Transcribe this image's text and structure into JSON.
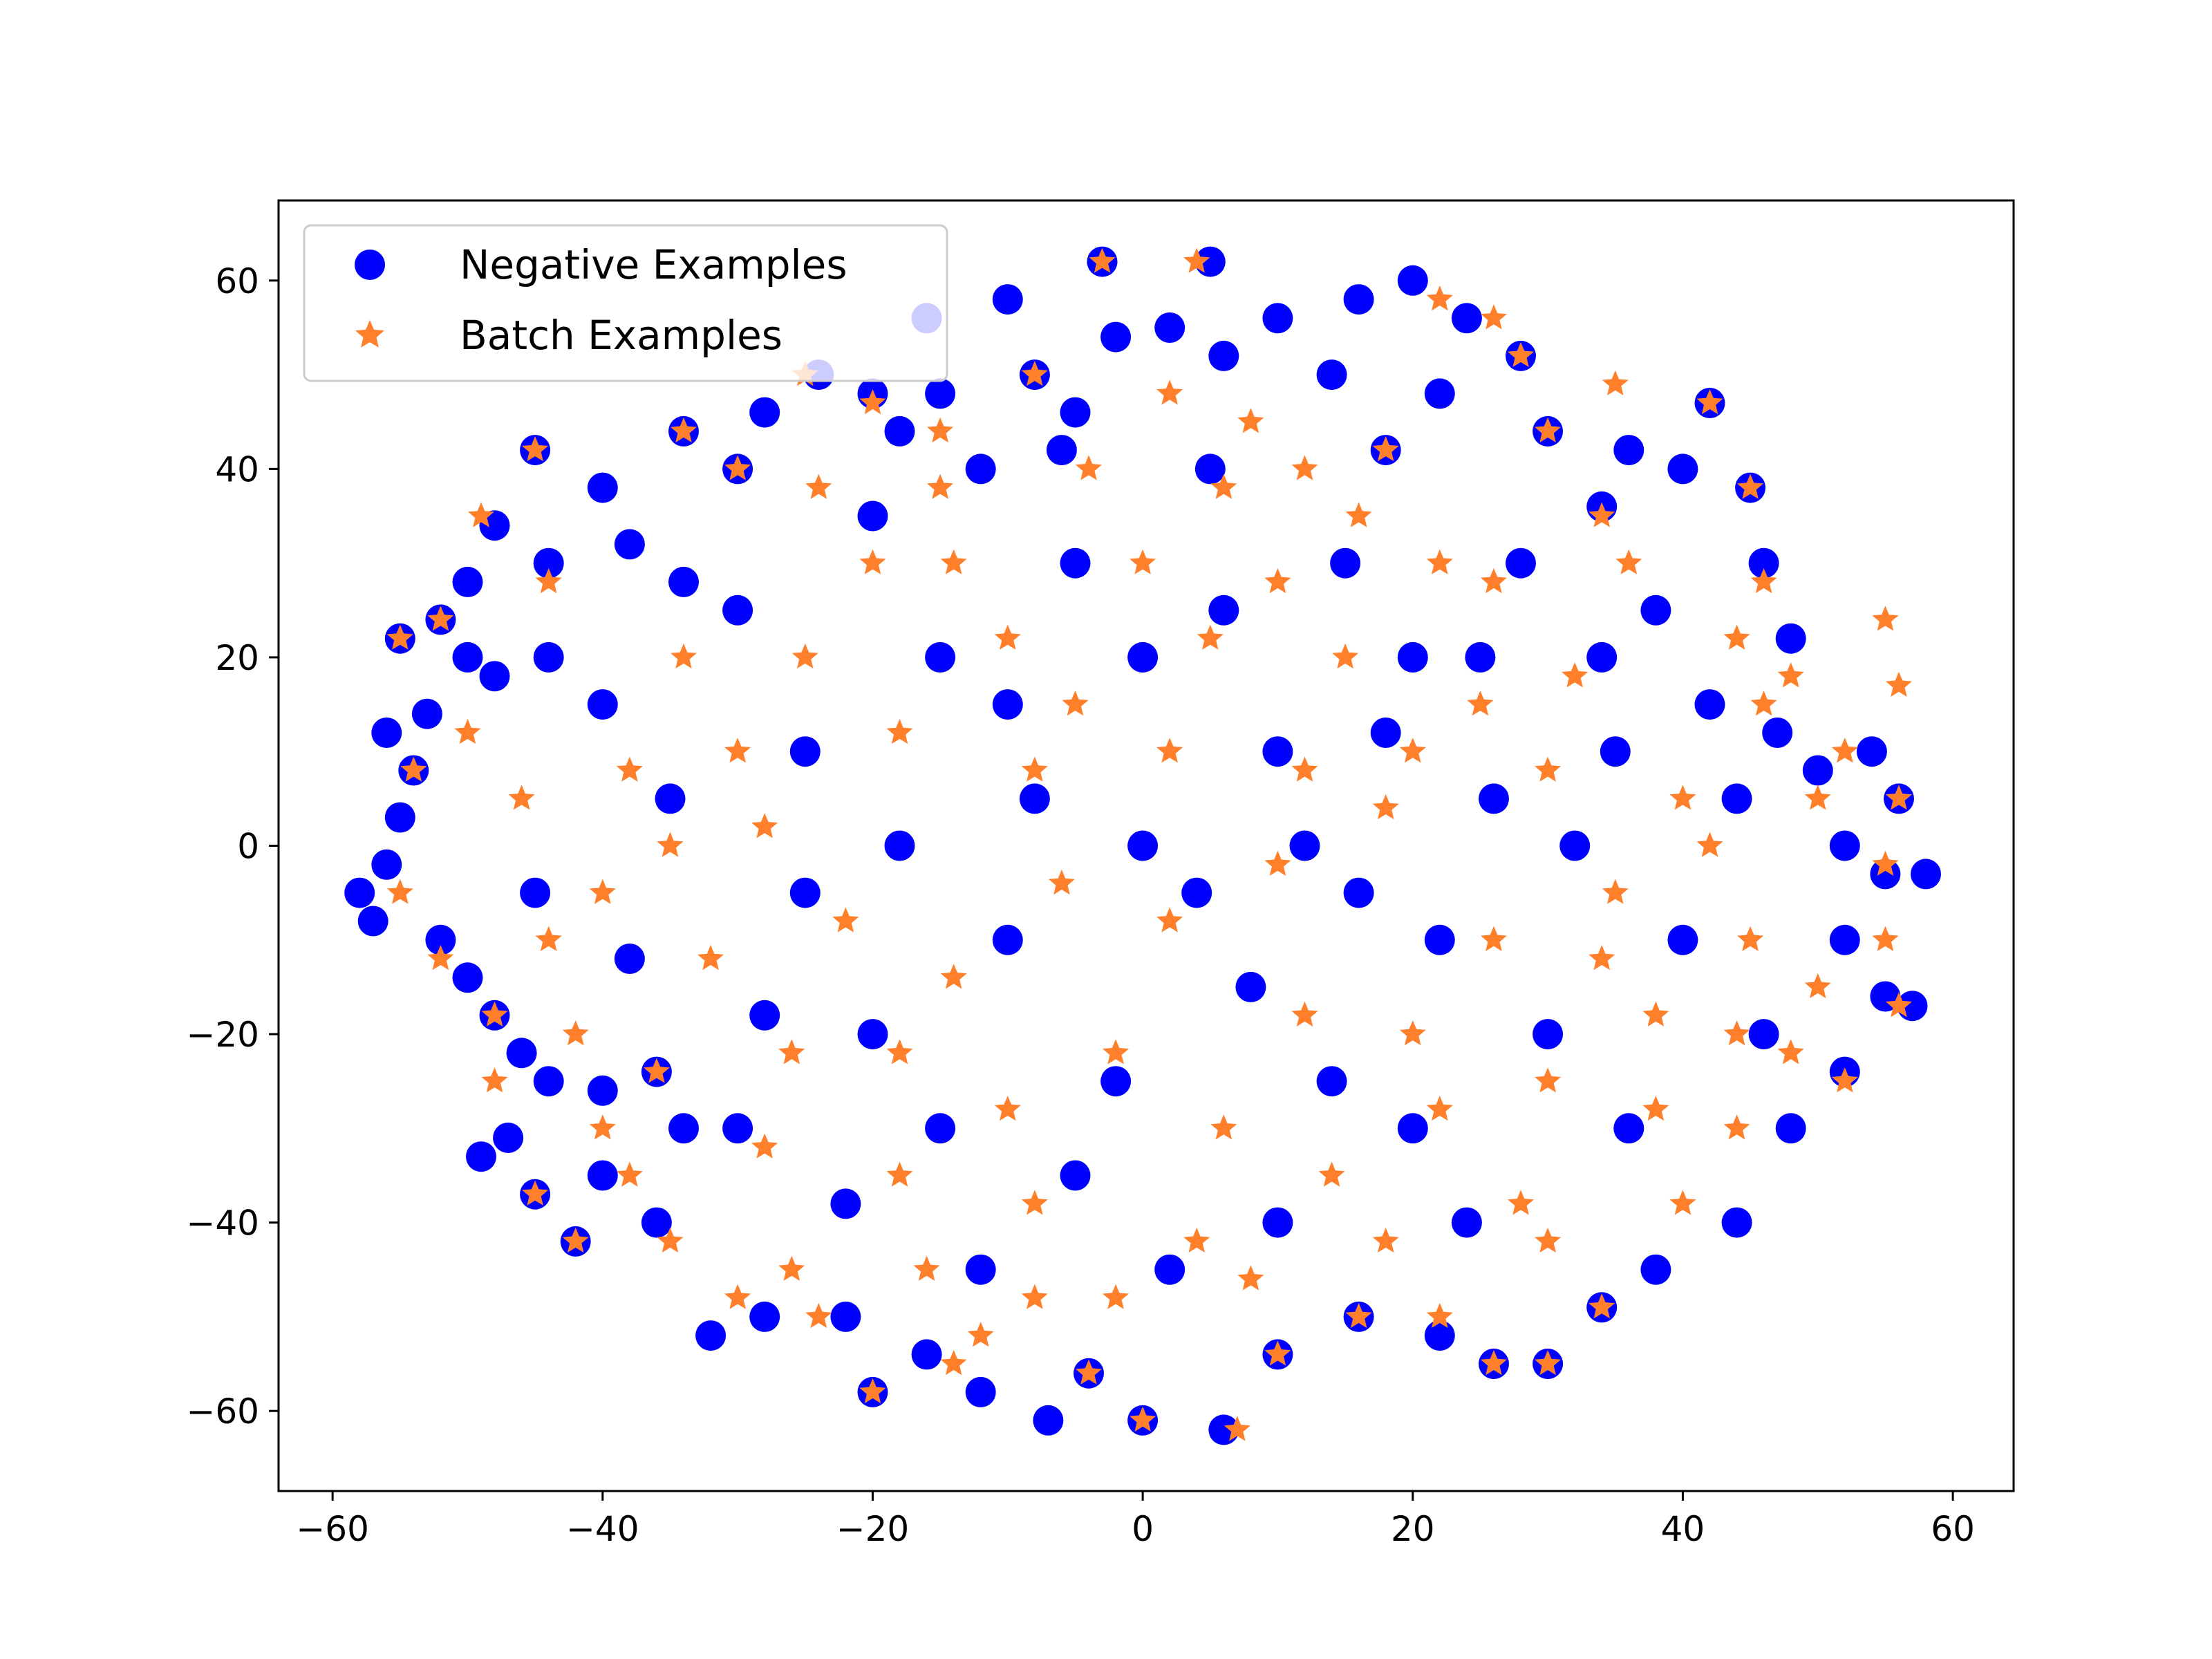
{
  "chart_data": {
    "type": "scatter",
    "title": "",
    "xlabel": "",
    "ylabel": "",
    "xlim": [
      -64,
      64.5
    ],
    "ylim": [
      -68.5,
      68.5
    ],
    "xticks": [
      -60,
      -40,
      -20,
      0,
      20,
      40,
      60
    ],
    "yticks": [
      -60,
      -40,
      -20,
      0,
      20,
      40,
      60
    ],
    "tick_labels_x": [
      "−60",
      "−40",
      "−20",
      "0",
      "20",
      "40",
      "60"
    ],
    "tick_labels_y": [
      "−60",
      "−40",
      "−20",
      "0",
      "20",
      "40",
      "60"
    ],
    "grid": false,
    "legend": {
      "position": "top-left",
      "entries": [
        "Negative Examples",
        "Batch Examples"
      ]
    },
    "colors": {
      "negative": "#0000ff",
      "batch": "#ff7f2a"
    },
    "series": [
      {
        "name": "Negative Examples",
        "marker": "circle",
        "color": "#0000ff",
        "points": [
          [
            -58,
            -5
          ],
          [
            -57,
            -8
          ],
          [
            -56,
            -2
          ],
          [
            -55,
            3
          ],
          [
            -54,
            8
          ],
          [
            -56,
            12
          ],
          [
            -53,
            14
          ],
          [
            -55,
            22
          ],
          [
            -52,
            24
          ],
          [
            -50,
            20
          ],
          [
            -48,
            18
          ],
          [
            -52,
            -10
          ],
          [
            -50,
            -14
          ],
          [
            -48,
            -18
          ],
          [
            -46,
            -22
          ],
          [
            -44,
            -25
          ],
          [
            -40,
            -26
          ],
          [
            -36,
            -24
          ],
          [
            -50,
            28
          ],
          [
            -48,
            34
          ],
          [
            -45,
            42
          ],
          [
            -44,
            30
          ],
          [
            -40,
            38
          ],
          [
            -38,
            32
          ],
          [
            -34,
            28
          ],
          [
            -34,
            44
          ],
          [
            -30,
            40
          ],
          [
            -28,
            46
          ],
          [
            -24,
            50
          ],
          [
            -20,
            48
          ],
          [
            -18,
            44
          ],
          [
            -16,
            56
          ],
          [
            -15,
            48
          ],
          [
            -12,
            40
          ],
          [
            -10,
            58
          ],
          [
            -8,
            50
          ],
          [
            -5,
            46
          ],
          [
            -2,
            54
          ],
          [
            -3,
            62
          ],
          [
            2,
            55
          ],
          [
            5,
            62
          ],
          [
            6,
            52
          ],
          [
            10,
            56
          ],
          [
            14,
            50
          ],
          [
            16,
            58
          ],
          [
            20,
            60
          ],
          [
            24,
            56
          ],
          [
            28,
            52
          ],
          [
            22,
            48
          ],
          [
            18,
            42
          ],
          [
            30,
            44
          ],
          [
            34,
            36
          ],
          [
            36,
            42
          ],
          [
            40,
            40
          ],
          [
            42,
            47
          ],
          [
            45,
            38
          ],
          [
            46,
            30
          ],
          [
            48,
            22
          ],
          [
            47,
            12
          ],
          [
            50,
            8
          ],
          [
            52,
            0
          ],
          [
            55,
            -3
          ],
          [
            58,
            -3
          ],
          [
            56,
            5
          ],
          [
            54,
            10
          ],
          [
            52,
            -10
          ],
          [
            55,
            -16
          ],
          [
            57,
            -17
          ],
          [
            52,
            -24
          ],
          [
            48,
            -30
          ],
          [
            44,
            -40
          ],
          [
            38,
            -45
          ],
          [
            34,
            -49
          ],
          [
            30,
            -55
          ],
          [
            26,
            -55
          ],
          [
            22,
            -52
          ],
          [
            16,
            -50
          ],
          [
            10,
            -54
          ],
          [
            6,
            -62
          ],
          [
            0,
            -61
          ],
          [
            -4,
            -56
          ],
          [
            -7,
            -61
          ],
          [
            -12,
            -58
          ],
          [
            -16,
            -54
          ],
          [
            -20,
            -58
          ],
          [
            -22,
            -50
          ],
          [
            -28,
            -50
          ],
          [
            -32,
            -52
          ],
          [
            -36,
            -40
          ],
          [
            -40,
            -35
          ],
          [
            -42,
            -42
          ],
          [
            -45,
            -37
          ],
          [
            -49,
            -33
          ],
          [
            -47,
            -31
          ],
          [
            -30,
            -30
          ],
          [
            -20,
            -20
          ],
          [
            -10,
            -10
          ],
          [
            0,
            0
          ],
          [
            10,
            10
          ],
          [
            20,
            20
          ],
          [
            -25,
            10
          ],
          [
            -15,
            20
          ],
          [
            -5,
            30
          ],
          [
            5,
            40
          ],
          [
            15,
            30
          ],
          [
            25,
            20
          ],
          [
            35,
            10
          ],
          [
            40,
            -10
          ],
          [
            30,
            -20
          ],
          [
            20,
            -30
          ],
          [
            10,
            -40
          ],
          [
            -5,
            -35
          ],
          [
            -15,
            -30
          ],
          [
            -25,
            -5
          ],
          [
            -35,
            5
          ],
          [
            -45,
            -5
          ],
          [
            -40,
            15
          ],
          [
            -30,
            25
          ],
          [
            -20,
            35
          ],
          [
            -10,
            15
          ],
          [
            0,
            20
          ],
          [
            12,
            0
          ],
          [
            22,
            -10
          ],
          [
            32,
            0
          ],
          [
            42,
            15
          ],
          [
            38,
            25
          ],
          [
            28,
            30
          ],
          [
            18,
            12
          ],
          [
            8,
            -15
          ],
          [
            -2,
            -25
          ],
          [
            -12,
            -45
          ],
          [
            2,
            -45
          ],
          [
            14,
            -25
          ],
          [
            24,
            -40
          ],
          [
            36,
            -30
          ],
          [
            46,
            -20
          ],
          [
            44,
            5
          ],
          [
            -38,
            -12
          ],
          [
            -28,
            -18
          ],
          [
            -18,
            0
          ],
          [
            -8,
            5
          ],
          [
            4,
            -5
          ],
          [
            16,
            -5
          ],
          [
            26,
            5
          ],
          [
            34,
            20
          ],
          [
            -44,
            20
          ],
          [
            -34,
            -30
          ],
          [
            -22,
            -38
          ],
          [
            6,
            25
          ],
          [
            -6,
            42
          ]
        ]
      },
      {
        "name": "Batch Examples",
        "marker": "star",
        "color": "#ff7f2a",
        "points": [
          [
            -55,
            22
          ],
          [
            -52,
            24
          ],
          [
            -49,
            35
          ],
          [
            -45,
            42
          ],
          [
            -34,
            44
          ],
          [
            -30,
            40
          ],
          [
            -25,
            50
          ],
          [
            -20,
            47
          ],
          [
            -15,
            44
          ],
          [
            -8,
            50
          ],
          [
            -3,
            62
          ],
          [
            4,
            62
          ],
          [
            2,
            48
          ],
          [
            8,
            45
          ],
          [
            12,
            40
          ],
          [
            18,
            42
          ],
          [
            22,
            58
          ],
          [
            26,
            56
          ],
          [
            28,
            52
          ],
          [
            30,
            44
          ],
          [
            35,
            49
          ],
          [
            42,
            47
          ],
          [
            45,
            38
          ],
          [
            46,
            28
          ],
          [
            55,
            24
          ],
          [
            56,
            17
          ],
          [
            48,
            18
          ],
          [
            50,
            5
          ],
          [
            56,
            5
          ],
          [
            55,
            -2
          ],
          [
            56,
            -17
          ],
          [
            55,
            -10
          ],
          [
            52,
            -25
          ],
          [
            48,
            -22
          ],
          [
            44,
            -30
          ],
          [
            40,
            -38
          ],
          [
            34,
            -49
          ],
          [
            30,
            -55
          ],
          [
            26,
            -55
          ],
          [
            22,
            -50
          ],
          [
            16,
            -50
          ],
          [
            10,
            -54
          ],
          [
            7,
            -62
          ],
          [
            0,
            -61
          ],
          [
            -4,
            -56
          ],
          [
            -8,
            -48
          ],
          [
            -12,
            -52
          ],
          [
            -16,
            -45
          ],
          [
            -20,
            -58
          ],
          [
            -24,
            -50
          ],
          [
            -30,
            -48
          ],
          [
            -35,
            -42
          ],
          [
            -42,
            -42
          ],
          [
            -45,
            -37
          ],
          [
            -40,
            -30
          ],
          [
            -36,
            -24
          ],
          [
            -42,
            -20
          ],
          [
            -48,
            -18
          ],
          [
            -52,
            -12
          ],
          [
            -55,
            -5
          ],
          [
            -54,
            8
          ],
          [
            -50,
            12
          ],
          [
            -46,
            5
          ],
          [
            -40,
            -5
          ],
          [
            -35,
            0
          ],
          [
            -30,
            10
          ],
          [
            -25,
            20
          ],
          [
            -20,
            30
          ],
          [
            -15,
            38
          ],
          [
            -10,
            22
          ],
          [
            -5,
            15
          ],
          [
            0,
            30
          ],
          [
            5,
            22
          ],
          [
            10,
            28
          ],
          [
            15,
            20
          ],
          [
            20,
            10
          ],
          [
            25,
            15
          ],
          [
            30,
            8
          ],
          [
            35,
            -5
          ],
          [
            40,
            5
          ],
          [
            45,
            -10
          ],
          [
            38,
            -18
          ],
          [
            30,
            -25
          ],
          [
            22,
            -28
          ],
          [
            14,
            -35
          ],
          [
            6,
            -30
          ],
          [
            -2,
            -22
          ],
          [
            -10,
            -28
          ],
          [
            -18,
            -35
          ],
          [
            -26,
            -22
          ],
          [
            -32,
            -12
          ],
          [
            -22,
            -8
          ],
          [
            -14,
            -14
          ],
          [
            -6,
            -4
          ],
          [
            2,
            -8
          ],
          [
            10,
            -2
          ],
          [
            18,
            4
          ],
          [
            26,
            -10
          ],
          [
            34,
            -12
          ],
          [
            42,
            0
          ],
          [
            36,
            30
          ],
          [
            26,
            28
          ],
          [
            16,
            35
          ],
          [
            6,
            38
          ],
          [
            -4,
            40
          ],
          [
            -14,
            30
          ],
          [
            -24,
            38
          ],
          [
            -34,
            20
          ],
          [
            -44,
            28
          ],
          [
            -44,
            -10
          ],
          [
            -28,
            -32
          ],
          [
            -18,
            -22
          ],
          [
            -8,
            -38
          ],
          [
            4,
            -42
          ],
          [
            12,
            -18
          ],
          [
            20,
            -20
          ],
          [
            28,
            -38
          ],
          [
            38,
            -28
          ],
          [
            46,
            15
          ],
          [
            32,
            18
          ],
          [
            22,
            30
          ],
          [
            12,
            8
          ],
          [
            2,
            10
          ],
          [
            -8,
            8
          ],
          [
            -18,
            12
          ],
          [
            -28,
            2
          ],
          [
            -38,
            8
          ],
          [
            -48,
            -25
          ],
          [
            -38,
            -35
          ],
          [
            -26,
            -45
          ],
          [
            -14,
            -55
          ],
          [
            -2,
            -48
          ],
          [
            8,
            -46
          ],
          [
            18,
            -42
          ],
          [
            30,
            -42
          ],
          [
            44,
            -20
          ],
          [
            50,
            -15
          ],
          [
            52,
            10
          ],
          [
            44,
            22
          ],
          [
            34,
            35
          ]
        ]
      }
    ]
  }
}
